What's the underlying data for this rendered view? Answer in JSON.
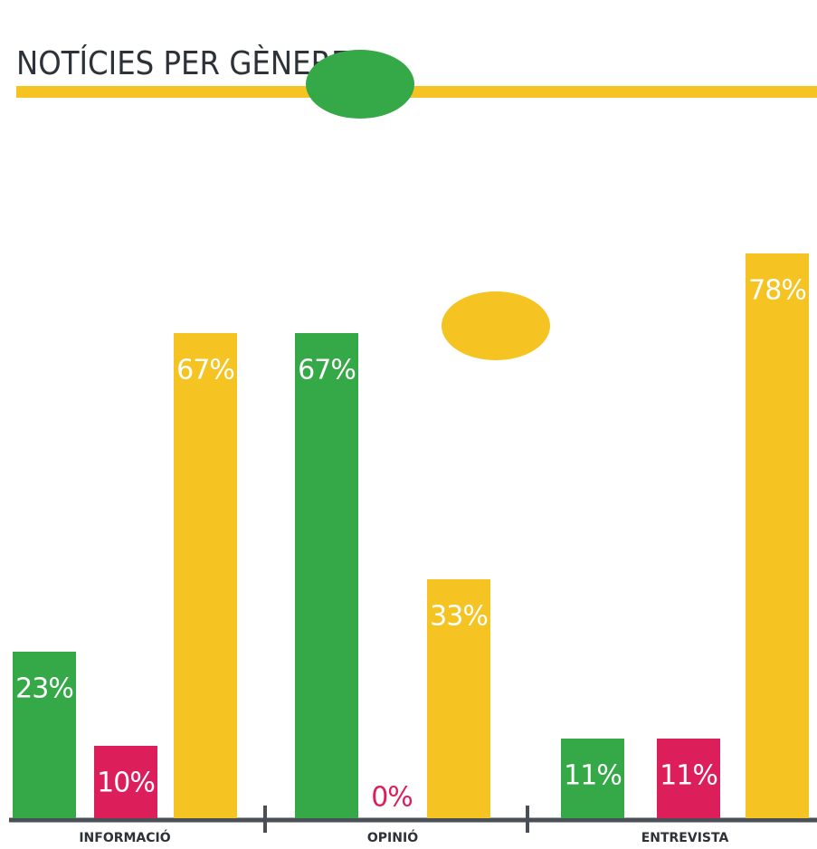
{
  "chart_data": {
    "type": "bar",
    "title": "NOTÍCIES PER GÈNERE",
    "categories": [
      "INFORMACIÓ",
      "OPINIÓ",
      "ENTREVISTA"
    ],
    "series": [
      {
        "color": "#35a847",
        "values": [
          23,
          67,
          11
        ],
        "value_labels": [
          "23%",
          "67%",
          "11%"
        ]
      },
      {
        "color": "#dc1f5a",
        "values": [
          10,
          0,
          11
        ],
        "value_labels": [
          "10%",
          "0%",
          "11%"
        ]
      },
      {
        "color": "#f5c322",
        "values": [
          67,
          33,
          78
        ],
        "value_labels": [
          "67%",
          "33%",
          "78%"
        ]
      }
    ]
  }
}
